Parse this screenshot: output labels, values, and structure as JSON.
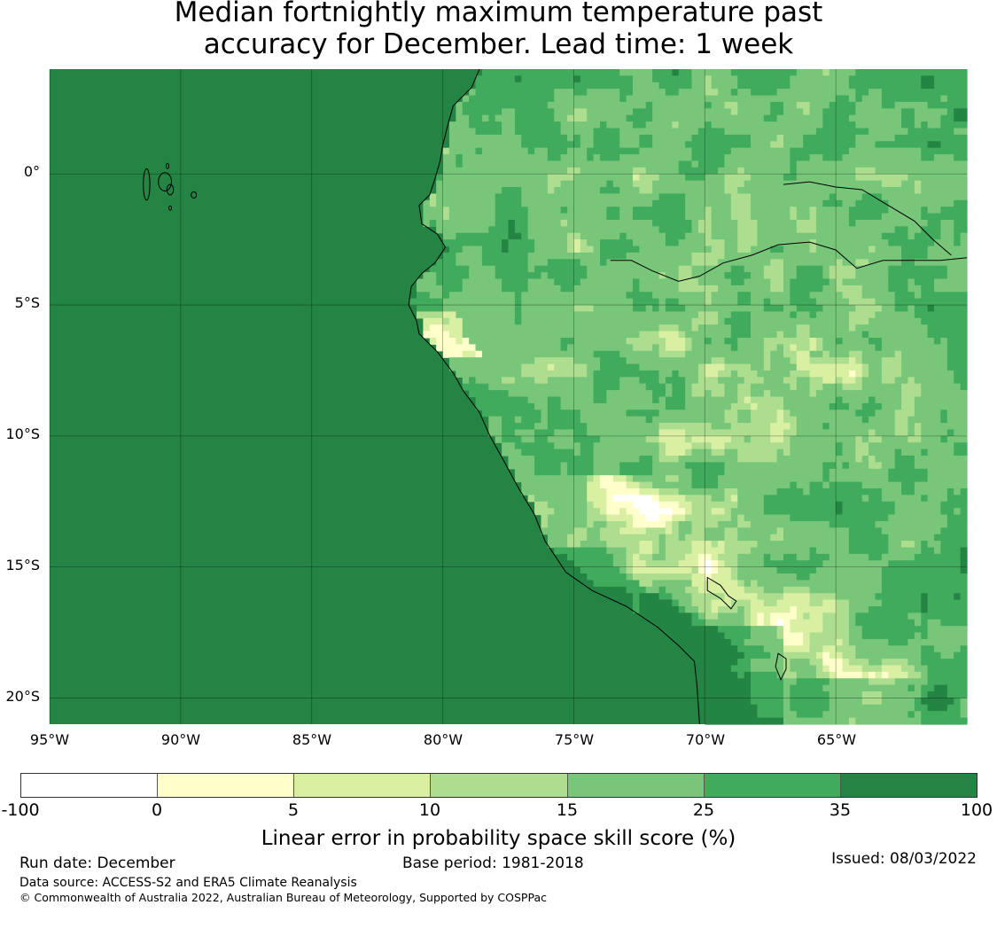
{
  "title": {
    "line1": "Median fortnightly maximum temperature past",
    "line2": "accuracy for December. Lead time: 1 week"
  },
  "map": {
    "lat_labels": [
      "0°",
      "5°S",
      "10°S",
      "15°S",
      "20°S"
    ],
    "lon_labels": [
      "95°W",
      "90°W",
      "85°W",
      "80°W",
      "75°W",
      "70°W",
      "65°W"
    ],
    "extent": {
      "lon_min": -95,
      "lon_max": -60,
      "lat_min": -21,
      "lat_max": 4
    },
    "ocean_color": "#238443"
  },
  "colorbar": {
    "ticks": [
      "-100",
      "0",
      "5",
      "10",
      "15",
      "25",
      "35",
      "100"
    ],
    "colors": [
      "#ffffff",
      "#ffffcc",
      "#d9f0a3",
      "#addd8e",
      "#78c679",
      "#41ab5d",
      "#238443"
    ],
    "label": "Linear error in probability space skill score (%)"
  },
  "footer": {
    "run_date": "Run date: December",
    "base_period": "Base period: 1981-2018",
    "issued": "Issued: 08/03/2022",
    "data_source": "Data source: ACCESS-S2 and ERA5 Climate Reanalysis",
    "copyright": "© Commonwealth of Australia 2022, Australian Bureau of Meteorology, Supported by COSPPac"
  }
}
